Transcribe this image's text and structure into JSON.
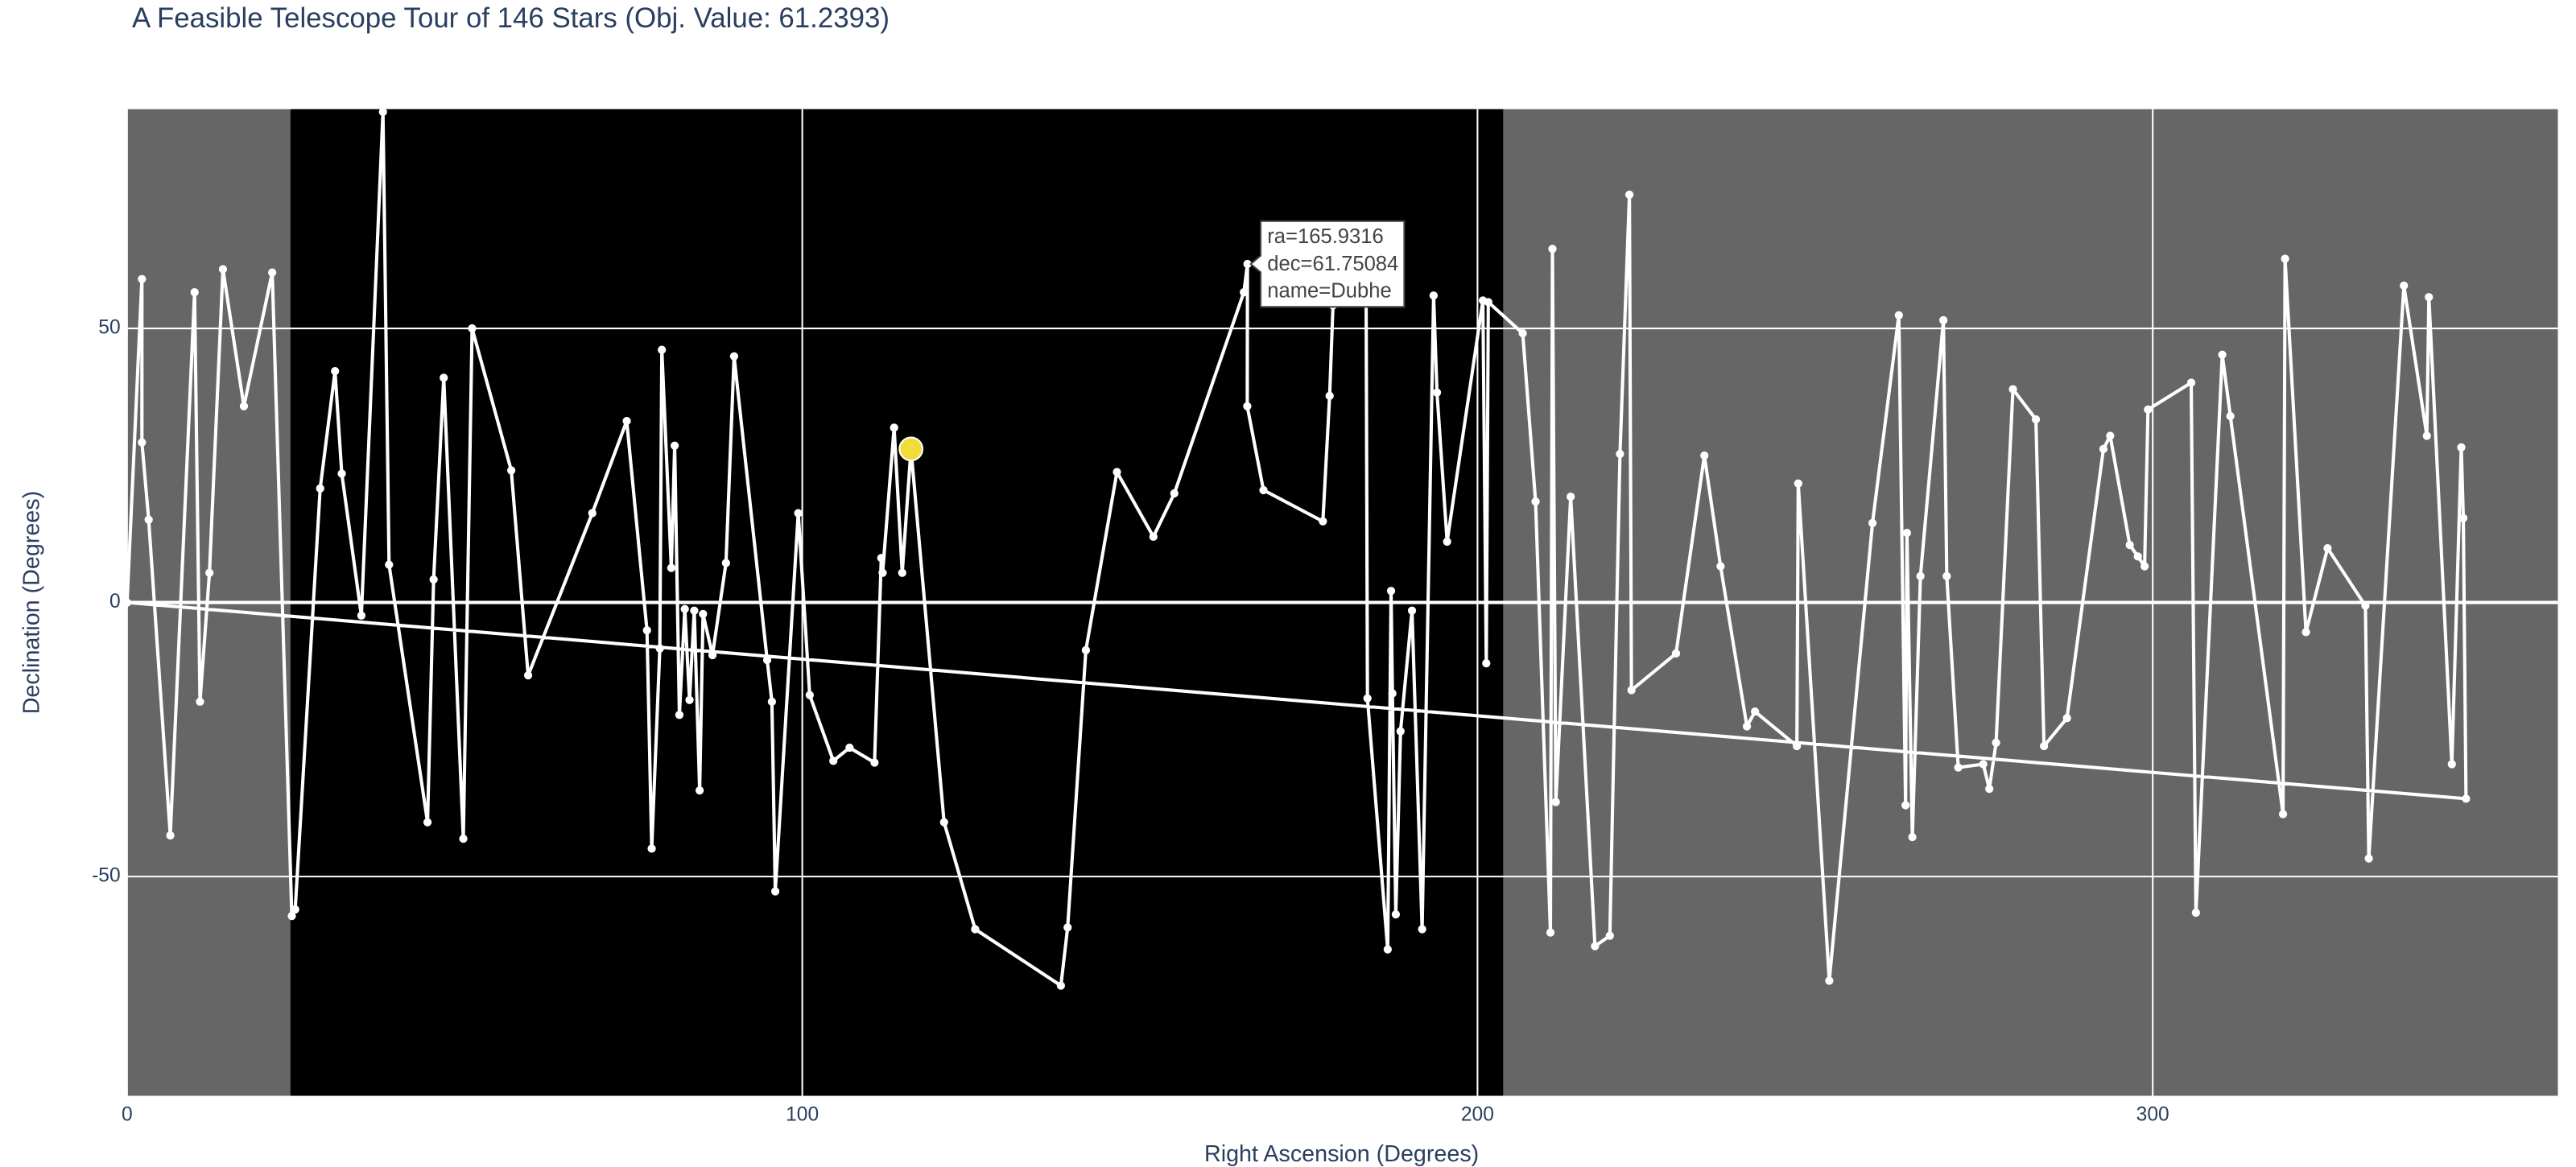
{
  "chart_data": {
    "type": "line",
    "title": "A Feasible Telescope Tour of 146 Stars  (Obj. Value: 61.2393)",
    "x_label": "Right Ascension (Degrees)",
    "y_label": "Declination (Degrees)",
    "xlim": [
      0,
      360
    ],
    "ylim": [
      -90,
      90
    ],
    "xticks": [
      0,
      100,
      200,
      300
    ],
    "yticks": [
      -50,
      0,
      50
    ],
    "grid": true,
    "plot_background": "#666666",
    "shaded_region": {
      "x": [
        24.2,
        203.8
      ],
      "color": "#000000"
    },
    "series": [
      {
        "color": "#ffffff",
        "x": [
          0,
          2.2,
          2.2,
          3.2,
          6.4,
          10.0,
          10.8,
          12.2,
          14.2,
          17.3,
          21.5,
          24.4,
          24.9,
          28.6,
          30.8,
          31.8,
          34.7,
          37.9,
          38.8,
          44.5,
          45.4,
          46.9,
          49.8,
          51.1,
          56.9,
          59.4,
          68.9,
          74.0,
          77.0,
          77.7,
          78.9,
          79.2,
          80.6,
          81.1,
          81.8,
          82.6,
          83.3,
          84.0,
          84.8,
          85.3,
          86.7,
          88.7,
          89.9,
          94.8,
          95.5,
          96.0,
          99.4,
          101.1,
          104.6,
          107.0,
          110.7,
          111.7,
          111.9,
          113.6,
          114.8,
          116.1,
          121.0,
          125.6,
          138.3,
          139.3,
          142.0,
          146.6,
          152.0,
          155.1,
          165.4,
          165.9316,
          165.9,
          168.3,
          177.1,
          178.1,
          178.6,
          183.5,
          183.7,
          186.7,
          187.2,
          187.4,
          187.9,
          188.6,
          190.3,
          191.8,
          193.5,
          194.0,
          195.5,
          200.8,
          201.3,
          201.6,
          206.7,
          208.6,
          210.8,
          211.1,
          211.6,
          213.8,
          217.4,
          219.6,
          221.1,
          222.5,
          222.8,
          229.4,
          233.6,
          236.0,
          239.9,
          241.1,
          247.3,
          247.5,
          252.1,
          258.5,
          262.4,
          263.4,
          263.6,
          264.4,
          265.6,
          269.0,
          269.5,
          271.2,
          274.9,
          275.8,
          276.8,
          279.3,
          282.7,
          283.9,
          287.3,
          292.7,
          293.7,
          296.6,
          297.8,
          298.8,
          299.3,
          305.7,
          306.4,
          310.3,
          311.5,
          319.3,
          319.6,
          322.7,
          325.9,
          331.5,
          332.0,
          337.2,
          340.6,
          340.9,
          344.3,
          345.7,
          346.0,
          346.4,
          0
        ],
        "y": [
          0,
          59.0,
          29.2,
          15.1,
          -42.5,
          56.6,
          -18.1,
          5.4,
          60.8,
          35.8,
          60.2,
          -57.2,
          -56.0,
          20.8,
          42.2,
          23.5,
          -2.4,
          89.5,
          6.9,
          -40.1,
          4.2,
          41.0,
          -43.1,
          50.0,
          24.1,
          -13.3,
          16.3,
          33.1,
          -5.1,
          -44.9,
          -8.4,
          46.1,
          6.3,
          28.6,
          -20.5,
          -1.2,
          -17.8,
          -1.5,
          -34.3,
          -2.1,
          -9.6,
          7.2,
          44.9,
          -10.5,
          -18.1,
          -52.7,
          16.3,
          -16.9,
          -28.9,
          -26.5,
          -29.2,
          8.1,
          5.4,
          31.9,
          5.4,
          28.0,
          -40.1,
          -59.6,
          -69.9,
          -59.3,
          -8.7,
          23.8,
          12.0,
          19.9,
          56.6,
          61.75084,
          35.8,
          20.5,
          14.8,
          37.7,
          54.2,
          57.2,
          -17.5,
          -63.3,
          2.1,
          -16.6,
          -56.9,
          -23.5,
          -1.5,
          -59.6,
          56.0,
          38.3,
          11.1,
          55.1,
          -11.1,
          54.8,
          49.1,
          18.4,
          -60.2,
          64.5,
          -36.4,
          19.3,
          -62.7,
          -60.8,
          27.1,
          74.4,
          -16.0,
          -9.3,
          26.8,
          6.6,
          -22.6,
          -19.9,
          -26.2,
          21.7,
          -69.0,
          14.5,
          52.4,
          -37.0,
          12.7,
          -42.8,
          4.8,
          51.5,
          4.8,
          -30.1,
          -29.5,
          -34.0,
          -25.6,
          38.9,
          33.4,
          -26.2,
          -21.1,
          28.0,
          30.4,
          10.5,
          8.4,
          6.6,
          35.2,
          40.1,
          -56.6,
          45.2,
          34.0,
          -38.6,
          62.7,
          -5.4,
          9.9,
          -0.6,
          -46.7,
          57.8,
          30.4,
          55.7,
          -29.5,
          28.3,
          15.4,
          -35.8,
          0
        ]
      }
    ],
    "highlight": {
      "x": 116.1,
      "y": 28.0,
      "color": "#f2dc3c"
    },
    "tooltip": {
      "x": 165.9316,
      "y": 61.75084,
      "lines": [
        "ra=165.9316",
        "dec=61.75084",
        "name=Dubhe"
      ]
    }
  }
}
